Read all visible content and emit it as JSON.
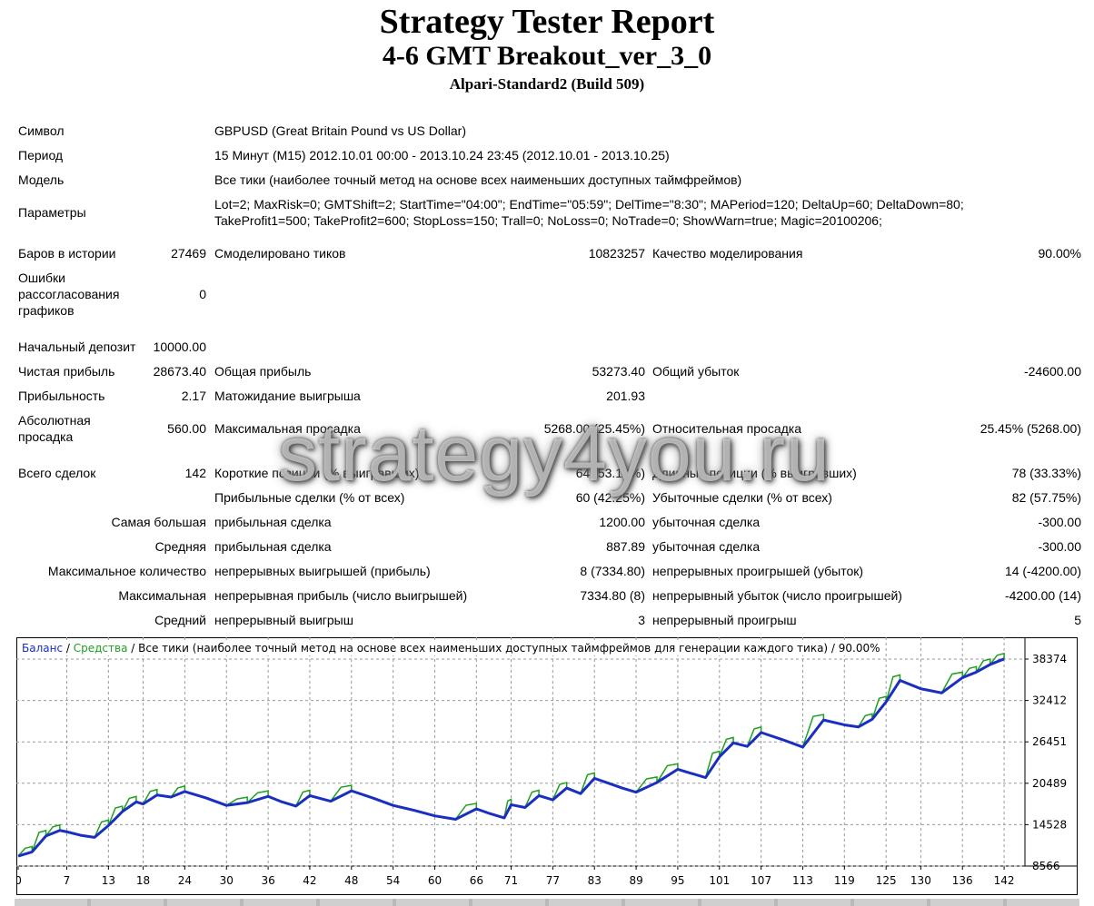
{
  "header": {
    "title": "Strategy Tester Report",
    "expert": "4-6 GMT Breakout_ver_3_0",
    "server": "Alpari-Standard2 (Build 509)"
  },
  "info": {
    "symbol_label": "Символ",
    "symbol_value": "GBPUSD (Great Britain Pound vs US Dollar)",
    "period_label": "Период",
    "period_value": "15 Минут (M15) 2012.10.01 00:00 - 2013.10.24 23:45 (2012.10.01 - 2013.10.25)",
    "model_label": "Модель",
    "model_value": "Все тики (наиболее точный метод на основе всех наименьших доступных таймфреймов)",
    "params_label": "Параметры",
    "params_line1": "Lot=2; MaxRisk=0; GMTShift=2; StartTime=\"04:00\"; EndTime=\"05:59\"; DelTime=\"8:30\"; MAPeriod=120; DeltaUp=60; DeltaDown=80;",
    "params_line2": "TakeProfit1=500; TakeProfit2=600; StopLoss=150; Trall=0; NoLoss=0; NoTrade=0; ShowWarn=true; Magic=20100206;"
  },
  "stats": {
    "bars_label": "Баров в истории",
    "bars_value": "27469",
    "ticks_label": "Смоделировано тиков",
    "ticks_value": "10823257",
    "quality_label": "Качество моделирования",
    "quality_value": "90.00%",
    "errors_label": "Ошибки рассогласования графиков",
    "errors_value": "0",
    "deposit_label": "Начальный депозит",
    "deposit_value": "10000.00",
    "net_label": "Чистая прибыль",
    "net_value": "28673.40",
    "gross_profit_label": "Общая прибыль",
    "gross_profit_value": "53273.40",
    "gross_loss_label": "Общий убыток",
    "gross_loss_value": "-24600.00",
    "pf_label": "Прибыльность",
    "pf_value": "2.17",
    "payoff_label": "Матожидание выигрыша",
    "payoff_value": "201.93",
    "abs_dd_label": "Абсолютная просадка",
    "abs_dd_value": "560.00",
    "max_dd_label": "Максимальная просадка",
    "max_dd_value": "5268.00 (25.45%)",
    "rel_dd_label": "Относительная просадка",
    "rel_dd_value": "25.45% (5268.00)",
    "trades_label": "Всего сделок",
    "trades_value": "142",
    "short_label": "Короткие позиции (% выигравших)",
    "short_value": "64 (53.13%)",
    "long_label": "Длинные позиции (% выигравших)",
    "long_value": "78 (33.33%)",
    "profit_trades_label": "Прибыльные сделки (% от всех)",
    "profit_trades_value": "60 (42.25%)",
    "loss_trades_label": "Убыточные сделки (% от всех)",
    "loss_trades_value": "82 (57.75%)",
    "largest_label": "Самая большая",
    "largest_profit_label": "прибыльная сделка",
    "largest_profit_value": "1200.00",
    "largest_loss_label": "убыточная сделка",
    "largest_loss_value": "-300.00",
    "average_label": "Средняя",
    "average_profit_label": "прибыльная сделка",
    "average_profit_value": "887.89",
    "average_loss_label": "убыточная сделка",
    "average_loss_value": "-300.00",
    "maxcount_label": "Максимальное количество",
    "maxcount_wins_label": "непрерывных выигрышей (прибыль)",
    "maxcount_wins_value": "8 (7334.80)",
    "maxcount_losses_label": "непрерывных проигрышей (убыток)",
    "maxcount_losses_value": "14 (-4200.00)",
    "maximal_label": "Максимальная",
    "maximal_profit_label": "непрерывная прибыль (число выигрышей)",
    "maximal_profit_value": "7334.80 (8)",
    "maximal_loss_label": "непрерывный убыток (число проигрышей)",
    "maximal_loss_value": "-4200.00 (14)",
    "avgcons_label": "Средний",
    "avgcons_wins_label": "непрерывный выигрыш",
    "avgcons_wins_value": "3",
    "avgcons_losses_label": "непрерывный проигрыш",
    "avgcons_losses_value": "5"
  },
  "watermark": "strategy4you.ru",
  "chart_caption": {
    "balance": "Баланс",
    "sep1": " / ",
    "equity": "Средства",
    "rest": " / Все тики (наиболее точный метод на основе всех наименьших доступных таймфреймов для генерации каждого тика) / 90.00%"
  },
  "colors": {
    "balance": "#1a2fbf",
    "equity": "#1fa01f",
    "grid": "#9a9a9a"
  },
  "chart_data": {
    "type": "line",
    "xlabel": "",
    "ylabel": "",
    "xlim": [
      0,
      145
    ],
    "ylim": [
      8566,
      38374
    ],
    "x_ticks": [
      "0",
      "7",
      "13",
      "18",
      "24",
      "30",
      "36",
      "42",
      "48",
      "54",
      "60",
      "66",
      "71",
      "77",
      "83",
      "89",
      "95",
      "101",
      "107",
      "113",
      "119",
      "125",
      "130",
      "136",
      "142"
    ],
    "y_ticks": [
      "38374",
      "32412",
      "26451",
      "20489",
      "14528",
      "8566"
    ],
    "series": [
      {
        "name": "Баланс",
        "x": [
          0,
          2,
          4,
          6,
          7,
          9,
          11,
          13,
          15,
          17,
          18,
          20,
          22,
          24,
          27,
          30,
          33,
          36,
          38,
          40,
          42,
          45,
          48,
          51,
          54,
          57,
          60,
          63,
          66,
          68,
          70,
          71,
          73,
          75,
          77,
          79,
          81,
          83,
          85,
          87,
          89,
          92,
          95,
          97,
          99,
          101,
          103,
          105,
          107,
          110,
          113,
          116,
          119,
          121,
          123,
          125,
          127,
          130,
          133,
          136,
          138,
          140,
          142
        ],
        "y": [
          10000,
          10600,
          12900,
          13700,
          13500,
          13000,
          12700,
          14400,
          16400,
          17800,
          17500,
          18800,
          18500,
          19300,
          18400,
          17300,
          17700,
          18600,
          17800,
          17200,
          18700,
          17900,
          19400,
          18400,
          17300,
          16600,
          15800,
          15300,
          16800,
          16100,
          15500,
          17400,
          17000,
          18700,
          18100,
          19800,
          19000,
          21200,
          20500,
          19800,
          19200,
          20600,
          22500,
          21900,
          21300,
          24300,
          26300,
          25800,
          27800,
          26800,
          25700,
          29600,
          28900,
          28600,
          29700,
          32200,
          35300,
          34100,
          33500,
          35700,
          36500,
          37600,
          38400
        ]
      }
    ]
  }
}
